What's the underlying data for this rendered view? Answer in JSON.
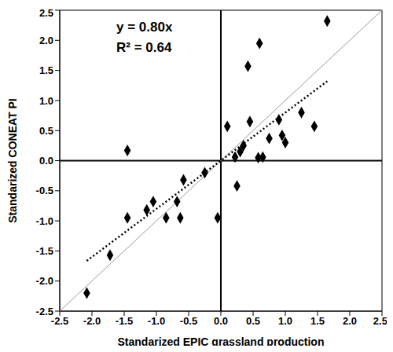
{
  "chart_data": {
    "type": "scatter",
    "x_label": "Standarized EPIC grassland production",
    "y_label": "Standarized CONEAT PI",
    "annotations": [
      "y = 0.80x",
      "R² = 0.64"
    ],
    "x": [
      -2.08,
      -1.72,
      -1.45,
      -1.45,
      -1.15,
      -1.05,
      -0.85,
      -0.68,
      -0.63,
      -0.58,
      -0.25,
      -0.05,
      0.1,
      0.22,
      0.25,
      0.3,
      0.35,
      0.42,
      0.45,
      0.58,
      0.6,
      0.65,
      0.75,
      0.9,
      0.95,
      1.0,
      1.25,
      1.45,
      1.65
    ],
    "values": [
      -2.2,
      -1.57,
      -0.95,
      0.17,
      -0.82,
      -0.68,
      -0.95,
      -0.68,
      -0.95,
      -0.32,
      -0.2,
      -0.95,
      0.57,
      0.06,
      -0.42,
      0.15,
      0.25,
      1.57,
      0.65,
      0.05,
      1.95,
      0.06,
      0.37,
      0.68,
      0.42,
      0.3,
      0.8,
      0.57,
      2.32
    ],
    "color": "#000000",
    "marker": "diamond",
    "xlim": [
      -2.5,
      2.5
    ],
    "ylim": [
      -2.5,
      2.5
    ],
    "xticks": [
      -2.5,
      {
        "value": -2,
        "label": "-2.0"
      },
      -1.5,
      {
        "value": -1,
        "label": "-1.0"
      },
      -0.5,
      {
        "value": 0,
        "label": "0.0"
      },
      0.5,
      {
        "value": 1,
        "label": "1.0"
      },
      1.5,
      {
        "value": 2,
        "label": "2.0"
      },
      2.5
    ],
    "yticks": [
      -2.5,
      {
        "value": -2,
        "label": "-2.0"
      },
      -1.5,
      {
        "value": -1,
        "label": "-1.0"
      },
      -0.5,
      {
        "value": 0,
        "label": "0.0"
      },
      0.5,
      {
        "value": 1,
        "label": "1.0"
      },
      1.5,
      {
        "value": 2,
        "label": "2.0"
      },
      2.5
    ],
    "origin": [
      0,
      0
    ],
    "trend_line": {
      "slope": 0.8,
      "x_range": [
        -2.08,
        1.65
      ],
      "line_style": "dotted",
      "color": "#000000"
    },
    "identity_line": {
      "slope": 1,
      "x_range": [
        -2.5,
        2.5
      ],
      "line_style": "solid",
      "color": "#999999"
    },
    "grid": false
  }
}
